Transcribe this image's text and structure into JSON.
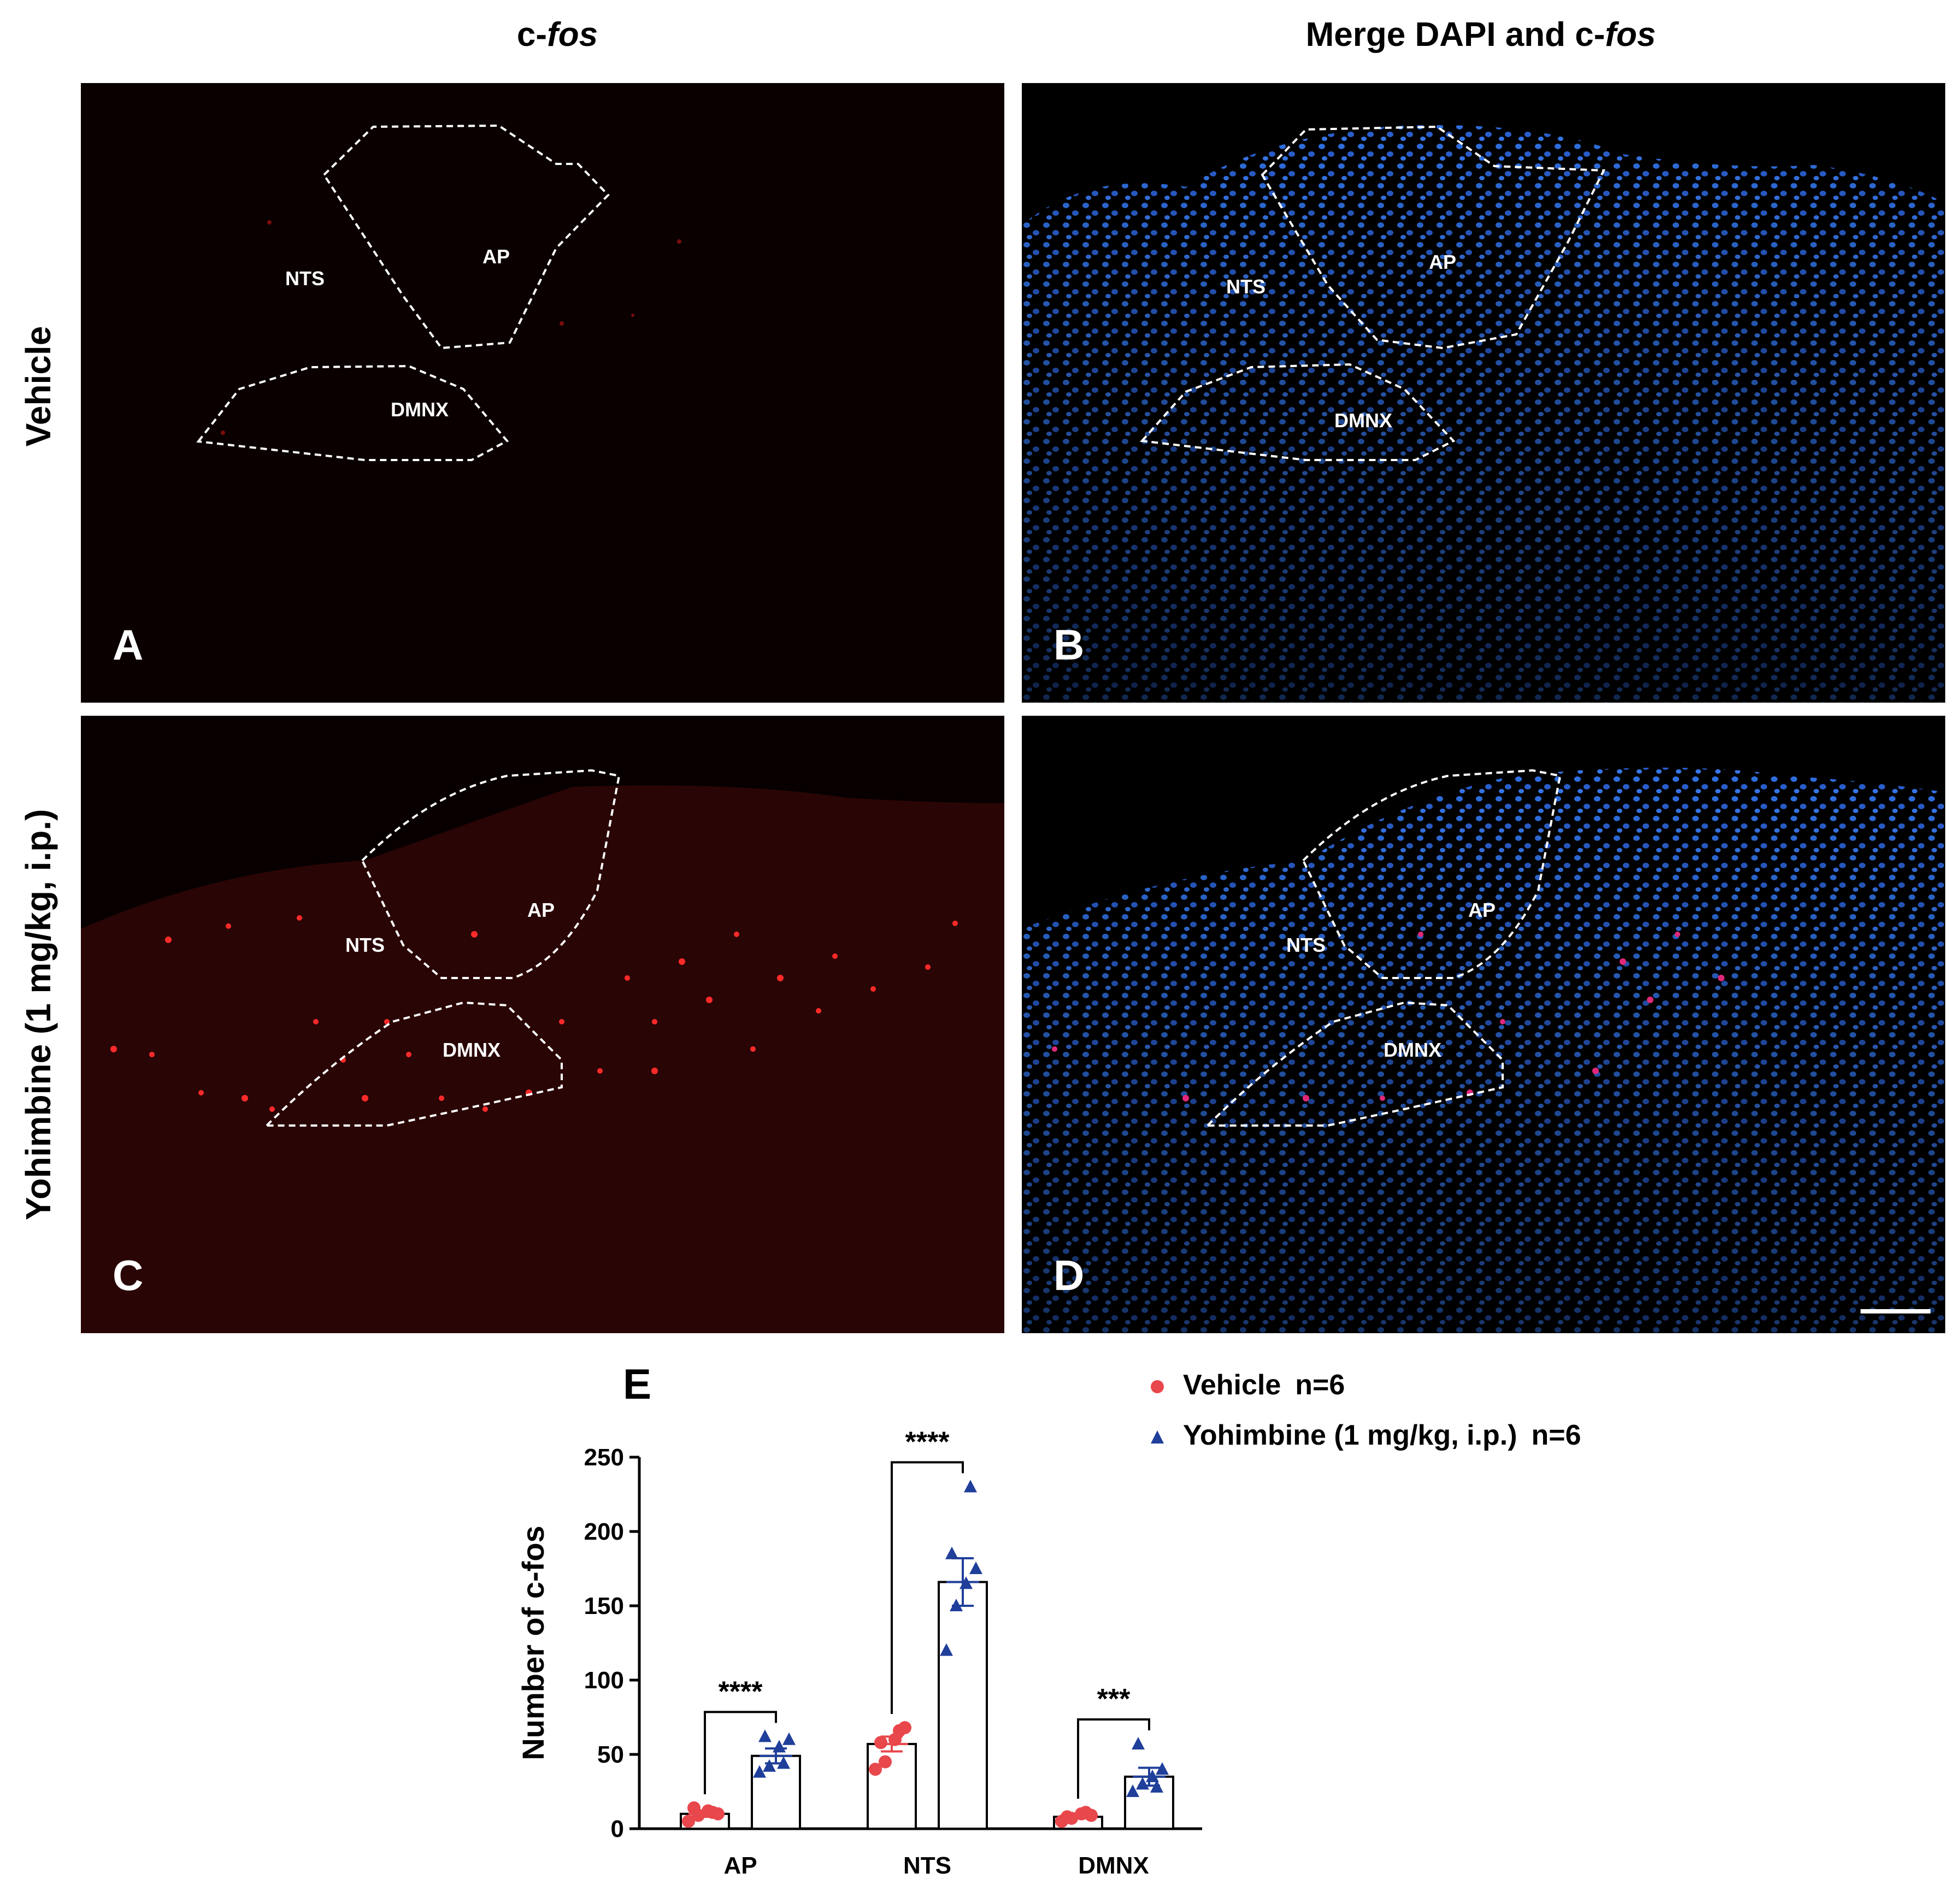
{
  "column_titles": {
    "left_plain": "c-",
    "left_italic": "fos",
    "right_plain": "Merge DAPI and c-",
    "right_italic": "fos"
  },
  "row_labels": {
    "top": "Vehicle",
    "bottom": "Yohimbine (1 mg/kg, i.p.)"
  },
  "panels": [
    {
      "letter": "A",
      "channel": "c-fos",
      "regions": {
        "nts": "NTS",
        "ap": "AP",
        "dmnx": "DMNX"
      }
    },
    {
      "letter": "B",
      "channel": "merge",
      "regions": {
        "nts": "NTS",
        "ap": "AP",
        "dmnx": "DMNX"
      }
    },
    {
      "letter": "C",
      "channel": "c-fos",
      "regions": {
        "nts": "NTS",
        "ap": "AP",
        "dmnx": "DMNX"
      }
    },
    {
      "letter": "D",
      "channel": "merge",
      "regions": {
        "nts": "NTS",
        "ap": "AP",
        "dmnx": "DMNX"
      }
    }
  ],
  "colors": {
    "vehicle": "#e8474c",
    "yohimbine": "#1f3f9a",
    "dapi": "#2f6fe0",
    "cfos": "#ff2a2a"
  },
  "chart_data": {
    "panel_letter": "E",
    "type": "bar",
    "categories": [
      "AP",
      "NTS",
      "DMNX"
    ],
    "ylabel": "Number of c-fos",
    "ylim": [
      0,
      250
    ],
    "yticks": [
      0,
      50,
      100,
      150,
      200,
      250
    ],
    "series": [
      {
        "name": "Vehicle",
        "n_label": "n=6",
        "marker": "circle",
        "values": [
          10,
          57,
          8
        ],
        "error": [
          2,
          5,
          1
        ],
        "points": [
          [
            5,
            9,
            12,
            10,
            14,
            11
          ],
          [
            40,
            45,
            60,
            68,
            58,
            66
          ],
          [
            5,
            7,
            10,
            9,
            8,
            11
          ]
        ]
      },
      {
        "name": "Yohimbine (1 mg/kg, i.p.)",
        "n_label": "n=6",
        "marker": "triangle",
        "values": [
          49,
          166,
          35
        ],
        "error": [
          5,
          16,
          6
        ],
        "points": [
          [
            38,
            42,
            55,
            60,
            62,
            44
          ],
          [
            120,
            150,
            165,
            175,
            185,
            230
          ],
          [
            25,
            30,
            35,
            40,
            57,
            28
          ]
        ]
      }
    ],
    "significance": [
      "****",
      "****",
      "***"
    ]
  }
}
